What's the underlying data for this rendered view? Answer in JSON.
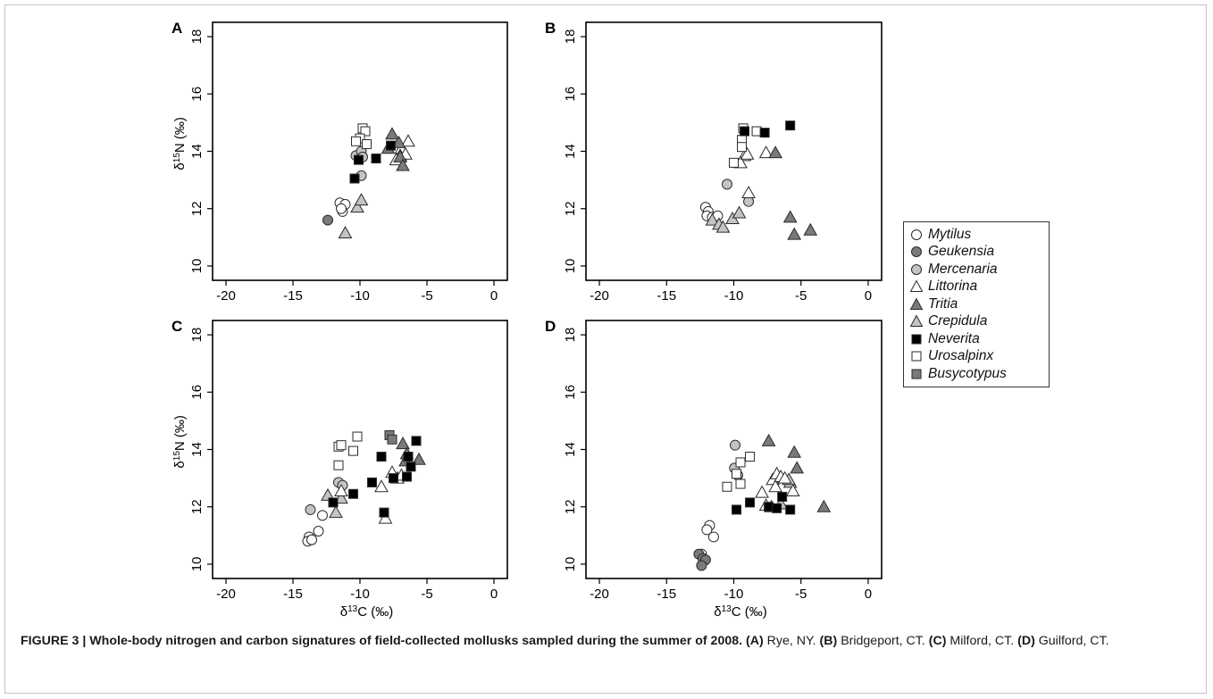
{
  "chart_data": [
    {
      "type": "scatter",
      "panel": "A",
      "xlabel": "",
      "ylabel": "δ15N (‰)",
      "xlim": [
        -21,
        1
      ],
      "ylim": [
        9.5,
        18.5
      ],
      "xticks": [
        -20,
        -15,
        -10,
        -5,
        0
      ],
      "yticks": [
        10,
        12,
        14,
        16,
        18
      ],
      "series": [
        {
          "name": "Mytilus",
          "points": [
            [
              -11.5,
              12.2
            ],
            [
              -11.3,
              11.9
            ],
            [
              -11.1,
              12.15
            ],
            [
              -11.4,
              12.0
            ]
          ]
        },
        {
          "name": "Geukensia",
          "points": [
            [
              -12.4,
              11.6
            ]
          ]
        },
        {
          "name": "Mercenaria",
          "points": [
            [
              -10.3,
              13.85
            ],
            [
              -9.9,
              14.0
            ],
            [
              -9.8,
              13.8
            ],
            [
              -9.9,
              13.15
            ]
          ]
        },
        {
          "name": "Littorina",
          "points": [
            [
              -6.4,
              14.35
            ],
            [
              -6.9,
              14.1
            ],
            [
              -7.0,
              13.85
            ],
            [
              -6.6,
              13.9
            ],
            [
              -7.3,
              13.7
            ]
          ]
        },
        {
          "name": "Tritia",
          "points": [
            [
              -7.6,
              14.6
            ],
            [
              -7.9,
              14.1
            ],
            [
              -7.0,
              13.8
            ],
            [
              -6.8,
              13.5
            ],
            [
              -7.1,
              14.3
            ]
          ]
        },
        {
          "name": "Crepidula",
          "points": [
            [
              -11.1,
              11.15
            ],
            [
              -10.2,
              12.05
            ],
            [
              -9.9,
              12.3
            ]
          ]
        },
        {
          "name": "Neverita",
          "points": [
            [
              -7.7,
              14.2
            ],
            [
              -8.8,
              13.75
            ],
            [
              -10.1,
              13.7
            ],
            [
              -10.4,
              13.05
            ]
          ]
        },
        {
          "name": "Urosalpinx",
          "points": [
            [
              -9.8,
              14.8
            ],
            [
              -9.6,
              14.7
            ],
            [
              -10.0,
              14.45
            ],
            [
              -10.3,
              14.35
            ],
            [
              -9.5,
              14.25
            ]
          ]
        }
      ]
    },
    {
      "type": "scatter",
      "panel": "B",
      "xlabel": "",
      "ylabel": "",
      "xlim": [
        -21,
        1
      ],
      "ylim": [
        9.5,
        18.5
      ],
      "xticks": [
        -20,
        -15,
        -10,
        -5,
        0
      ],
      "yticks": [
        10,
        12,
        14,
        16,
        18
      ],
      "series": [
        {
          "name": "Mytilus",
          "points": [
            [
              -12.1,
              12.05
            ],
            [
              -11.9,
              11.9
            ],
            [
              -12.0,
              11.75
            ],
            [
              -11.6,
              11.7
            ],
            [
              -11.2,
              11.75
            ]
          ]
        },
        {
          "name": "Mercenaria",
          "points": [
            [
              -10.5,
              12.85
            ],
            [
              -8.9,
              12.25
            ]
          ]
        },
        {
          "name": "Littorina",
          "points": [
            [
              -9.2,
              13.85
            ],
            [
              -9.5,
              13.6
            ],
            [
              -9.0,
              13.9
            ],
            [
              -7.6,
              13.95
            ],
            [
              -8.9,
              12.55
            ]
          ]
        },
        {
          "name": "Tritia",
          "points": [
            [
              -6.9,
              13.95
            ],
            [
              -5.8,
              11.7
            ],
            [
              -5.5,
              11.1
            ],
            [
              -4.3,
              11.25
            ]
          ]
        },
        {
          "name": "Crepidula",
          "points": [
            [
              -11.6,
              11.6
            ],
            [
              -11.1,
              11.45
            ],
            [
              -10.8,
              11.35
            ],
            [
              -10.1,
              11.65
            ],
            [
              -9.6,
              11.85
            ]
          ]
        },
        {
          "name": "Neverita",
          "points": [
            [
              -9.2,
              14.7
            ],
            [
              -7.7,
              14.65
            ],
            [
              -5.8,
              14.9
            ]
          ]
        },
        {
          "name": "Urosalpinx",
          "points": [
            [
              -9.3,
              14.8
            ],
            [
              -8.3,
              14.7
            ],
            [
              -9.4,
              14.4
            ],
            [
              -9.4,
              14.15
            ],
            [
              -10.0,
              13.6
            ]
          ]
        }
      ]
    },
    {
      "type": "scatter",
      "panel": "C",
      "xlabel": "δ13C (‰)",
      "ylabel": "δ15N (‰)",
      "xlim": [
        -21,
        1
      ],
      "ylim": [
        9.5,
        18.5
      ],
      "xticks": [
        -20,
        -15,
        -10,
        -5,
        0
      ],
      "yticks": [
        10,
        12,
        14,
        16,
        18
      ],
      "series": [
        {
          "name": "Mytilus",
          "points": [
            [
              -13.8,
              10.95
            ],
            [
              -13.9,
              10.8
            ],
            [
              -13.6,
              10.85
            ],
            [
              -13.1,
              11.15
            ],
            [
              -12.8,
              11.7
            ]
          ]
        },
        {
          "name": "Mercenaria",
          "points": [
            [
              -13.7,
              11.9
            ],
            [
              -11.6,
              12.85
            ],
            [
              -11.3,
              12.75
            ]
          ]
        },
        {
          "name": "Littorina",
          "points": [
            [
              -11.4,
              12.55
            ],
            [
              -8.4,
              12.7
            ],
            [
              -7.6,
              13.2
            ],
            [
              -7.2,
              13.0
            ],
            [
              -6.9,
              13.1
            ],
            [
              -8.1,
              11.6
            ]
          ]
        },
        {
          "name": "Tritia",
          "points": [
            [
              -6.8,
              14.2
            ],
            [
              -6.5,
              13.85
            ],
            [
              -6.6,
              13.6
            ],
            [
              -5.6,
              13.65
            ]
          ]
        },
        {
          "name": "Crepidula",
          "points": [
            [
              -12.4,
              12.4
            ],
            [
              -11.8,
              11.8
            ],
            [
              -11.4,
              12.3
            ]
          ]
        },
        {
          "name": "Neverita",
          "points": [
            [
              -12.0,
              12.15
            ],
            [
              -10.5,
              12.45
            ],
            [
              -9.1,
              12.85
            ],
            [
              -8.4,
              13.75
            ],
            [
              -8.2,
              11.8
            ],
            [
              -7.5,
              13.0
            ],
            [
              -6.5,
              13.05
            ],
            [
              -6.4,
              13.75
            ],
            [
              -6.2,
              13.4
            ],
            [
              -5.8,
              14.3
            ]
          ]
        },
        {
          "name": "Urosalpinx",
          "points": [
            [
              -11.6,
              14.1
            ],
            [
              -11.4,
              14.15
            ],
            [
              -11.6,
              13.45
            ],
            [
              -10.5,
              13.95
            ],
            [
              -10.2,
              14.45
            ]
          ]
        },
        {
          "name": "Busycotypus",
          "points": [
            [
              -7.8,
              14.5
            ],
            [
              -7.6,
              14.35
            ]
          ]
        }
      ]
    },
    {
      "type": "scatter",
      "panel": "D",
      "xlabel": "δ13C (‰)",
      "ylabel": "",
      "xlim": [
        -21,
        1
      ],
      "ylim": [
        9.5,
        18.5
      ],
      "xticks": [
        -20,
        -15,
        -10,
        -5,
        0
      ],
      "yticks": [
        10,
        12,
        14,
        16,
        18
      ],
      "series": [
        {
          "name": "Mytilus",
          "points": [
            [
              -11.8,
              11.35
            ],
            [
              -12.0,
              11.2
            ],
            [
              -11.5,
              10.95
            ],
            [
              -12.4,
              10.35
            ]
          ]
        },
        {
          "name": "Geukensia",
          "points": [
            [
              -12.6,
              10.35
            ],
            [
              -12.3,
              10.2
            ],
            [
              -12.1,
              10.15
            ],
            [
              -12.4,
              9.95
            ]
          ]
        },
        {
          "name": "Mercenaria",
          "points": [
            [
              -9.9,
              14.15
            ],
            [
              -9.95,
              13.35
            ],
            [
              -9.7,
              13.1
            ]
          ]
        },
        {
          "name": "Littorina",
          "points": [
            [
              -7.9,
              12.5
            ],
            [
              -7.1,
              12.95
            ],
            [
              -6.8,
              13.15
            ],
            [
              -6.5,
              13.05
            ],
            [
              -6.2,
              13.0
            ],
            [
              -5.6,
              12.55
            ],
            [
              -6.9,
              12.7
            ],
            [
              -7.6,
              12.05
            ],
            [
              -7.2,
              12.0
            ]
          ]
        },
        {
          "name": "Tritia",
          "points": [
            [
              -7.4,
              14.3
            ],
            [
              -5.5,
              13.9
            ],
            [
              -5.3,
              13.35
            ],
            [
              -3.3,
              12.0
            ]
          ]
        },
        {
          "name": "Crepidula",
          "points": [
            [
              -5.8,
              12.85
            ],
            [
              -5.9,
              12.95
            ],
            [
              -6.5,
              12.1
            ]
          ]
        },
        {
          "name": "Neverita",
          "points": [
            [
              -9.8,
              11.9
            ],
            [
              -8.8,
              12.15
            ],
            [
              -7.4,
              12.0
            ],
            [
              -6.8,
              11.95
            ],
            [
              -6.4,
              12.35
            ],
            [
              -5.8,
              11.9
            ]
          ]
        },
        {
          "name": "Urosalpinx",
          "points": [
            [
              -10.5,
              12.7
            ],
            [
              -9.5,
              12.8
            ],
            [
              -9.8,
              13.15
            ],
            [
              -9.5,
              13.55
            ],
            [
              -8.8,
              13.75
            ]
          ]
        }
      ]
    }
  ],
  "legend": {
    "items": [
      {
        "label": "Mytilus",
        "marker": "circle",
        "fill": "#ffffff"
      },
      {
        "label": "Geukensia",
        "marker": "circle",
        "fill": "#7a7a7a"
      },
      {
        "label": "Mercenaria",
        "marker": "circle",
        "fill": "#c4c4c4"
      },
      {
        "label": "Littorina",
        "marker": "triangle",
        "fill": "#ffffff"
      },
      {
        "label": "Tritia",
        "marker": "triangle",
        "fill": "#7a7a7a"
      },
      {
        "label": "Crepidula",
        "marker": "triangle",
        "fill": "#c4c4c4"
      },
      {
        "label": "Neverita",
        "marker": "square",
        "fill": "#000000"
      },
      {
        "label": "Urosalpinx",
        "marker": "square",
        "fill": "#ffffff"
      },
      {
        "label": "Busycotypus",
        "marker": "square",
        "fill": "#7a7a7a"
      }
    ]
  },
  "caption": {
    "figure_label": "FIGURE 3 | Whole-body nitrogen and carbon signatures of field-collected mollusks sampled during the summer of 2008.",
    "parts": [
      {
        "key": "(A)",
        "text": " Rye, NY. "
      },
      {
        "key": "(B)",
        "text": " Bridgeport, CT. "
      },
      {
        "key": "(C)",
        "text": " Milford, CT. "
      },
      {
        "key": "(D)",
        "text": " Guilford, CT."
      }
    ]
  }
}
